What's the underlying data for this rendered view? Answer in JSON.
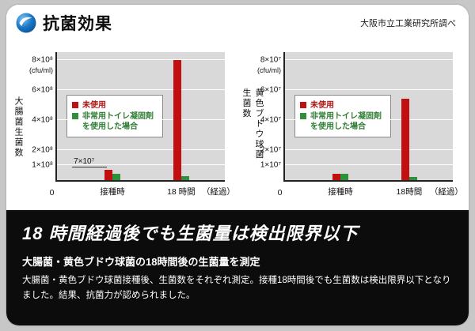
{
  "header": {
    "title": "抗菌効果",
    "source": "大阪市立工業研究所調べ"
  },
  "legend": {
    "unused": "未使用",
    "used": "非常用トイレ凝固剤を使用した場合"
  },
  "colors": {
    "red": "#c01010",
    "green": "#2f8f3a",
    "plot_bg": "#d9d9d9",
    "panel_black": "#0c0c0c"
  },
  "footer": {
    "headline": "18 時間経過後でも生菌量は検出限界以下",
    "subhead": "大腸菌・黄色ブドウ球菌の18時間後の生菌量を測定",
    "body": "大腸菌・黄色ブドウ球菌接種後、生菌数をそれぞれ測定。接種18時間後でも生菌数は検出限界以下となりました。結果、抗菌力が認められました。"
  },
  "chart_data": [
    {
      "type": "bar",
      "title": "大腸菌生菌数",
      "ylabel": "大腸菌生菌数",
      "unit": "(cfu/ml)",
      "ymax": 850000000,
      "ylim": [
        0,
        850000000
      ],
      "yticks": [
        {
          "v": 100000000,
          "label": "1×10⁸"
        },
        {
          "v": 200000000,
          "label": "2×10⁸"
        },
        {
          "v": 400000000,
          "label": "4×10⁸"
        },
        {
          "v": 600000000,
          "label": "6×10⁸"
        },
        {
          "v": 800000000,
          "label": "8×10⁸"
        }
      ],
      "categories": [
        "接種時",
        "18 時間"
      ],
      "xpos": [
        33,
        74
      ],
      "origin_label": "0",
      "x_suffix": "（経過）",
      "series": [
        {
          "name": "未使用",
          "color": "red",
          "values": [
            70000000,
            800000000
          ]
        },
        {
          "name": "非常用トイレ凝固剤を使用した場合",
          "color": "green",
          "values": [
            40000000,
            25000000
          ]
        }
      ],
      "annotation": {
        "text": "7×10⁷",
        "x": 9,
        "y": 10
      }
    },
    {
      "type": "bar",
      "title": "黄色ブドウ球菌生菌数",
      "ylabel": "黄色ブドウ球菌生菌数",
      "unit": "(cfu/ml)",
      "ymax": 85000000,
      "ylim": [
        0,
        85000000
      ],
      "yticks": [
        {
          "v": 10000000,
          "label": "1×10⁷"
        },
        {
          "v": 20000000,
          "label": "2×10⁷"
        },
        {
          "v": 40000000,
          "label": "4×10⁷"
        },
        {
          "v": 60000000,
          "label": "6×10⁷"
        },
        {
          "v": 80000000,
          "label": "8×10⁷"
        }
      ],
      "categories": [
        "接種時",
        "18時間"
      ],
      "xpos": [
        33,
        74
      ],
      "origin_label": "0",
      "x_suffix": "（経過）",
      "series": [
        {
          "name": "未使用",
          "color": "red",
          "values": [
            4000000,
            54000000
          ]
        },
        {
          "name": "非常用トイレ凝固剤を使用した場合",
          "color": "green",
          "values": [
            4000000,
            2000000
          ]
        }
      ],
      "annotation": null
    }
  ]
}
